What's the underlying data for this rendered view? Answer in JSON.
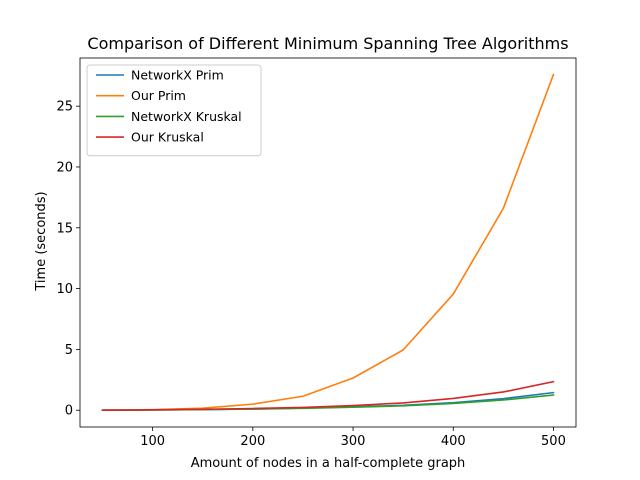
{
  "chart_data": {
    "type": "line",
    "title": "Comparison of Different Minimum Spanning Tree Algorithms",
    "xlabel": "Amount of nodes in a half-complete graph",
    "ylabel": "Time (seconds)",
    "xlim": [
      27.5,
      522.5
    ],
    "ylim": [
      -1.38,
      28.96
    ],
    "xticks": [
      100,
      200,
      300,
      400,
      500
    ],
    "yticks": [
      0,
      5,
      10,
      15,
      20,
      25
    ],
    "grid": false,
    "legend_position": "top-left",
    "x": [
      50,
      100,
      150,
      200,
      250,
      300,
      350,
      400,
      450,
      500
    ],
    "series": [
      {
        "name": "NetworkX Prim",
        "color": "#1f77b4",
        "values": [
          0.0,
          0.02,
          0.05,
          0.1,
          0.18,
          0.28,
          0.4,
          0.62,
          0.95,
          1.45
        ]
      },
      {
        "name": "Our Prim",
        "color": "#ff7f0e",
        "values": [
          0.0,
          0.04,
          0.17,
          0.5,
          1.15,
          2.65,
          4.95,
          9.55,
          16.6,
          27.6
        ]
      },
      {
        "name": "NetworkX Kruskal",
        "color": "#2ca02c",
        "values": [
          0.0,
          0.02,
          0.05,
          0.09,
          0.16,
          0.25,
          0.36,
          0.56,
          0.84,
          1.25
        ]
      },
      {
        "name": "Our Kruskal",
        "color": "#d62728",
        "values": [
          0.0,
          0.03,
          0.08,
          0.14,
          0.23,
          0.38,
          0.6,
          0.97,
          1.5,
          2.35
        ]
      }
    ]
  }
}
